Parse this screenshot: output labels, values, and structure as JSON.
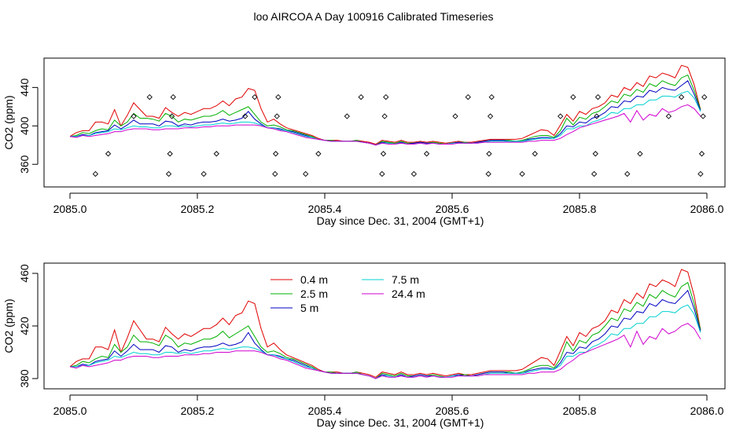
{
  "figure": {
    "title": "loo AIRCOA A  Day 100916  Calibrated Timeseries"
  },
  "chart_data": [
    {
      "type": "line",
      "panel": "top",
      "xlabel": "Day since Dec. 31, 2004 (GMT+1)",
      "ylabel": "CO2 (ppm)",
      "xlim": [
        2085.0,
        2086.0
      ],
      "ylim": [
        343,
        464
      ],
      "xticks": [
        2085.0,
        2085.2,
        2085.4,
        2085.6,
        2085.8,
        2086.0
      ],
      "xtick_labels": [
        "2085.0",
        "2085.2",
        "2085.4",
        "2085.6",
        "2085.8",
        "2086.0"
      ],
      "yticks": [
        360,
        400,
        440
      ],
      "ytick_labels": [
        "360",
        "400",
        "440"
      ],
      "grid": false,
      "legend": "none",
      "series_ref": "shared",
      "flag_points": {
        "x": [
          2085.04,
          2085.06,
          2085.1,
          2085.125,
          2085.155,
          2085.157,
          2085.16,
          2085.162,
          2085.21,
          2085.23,
          2085.275,
          2085.29,
          2085.322,
          2085.323,
          2085.325,
          2085.327,
          2085.37,
          2085.39,
          2085.435,
          2085.457,
          2085.49,
          2085.492,
          2085.494,
          2085.496,
          2085.54,
          2085.56,
          2085.605,
          2085.625,
          2085.657,
          2085.658,
          2085.66,
          2085.662,
          2085.71,
          2085.73,
          2085.77,
          2085.79,
          2085.823,
          2085.825,
          2085.827,
          2085.829,
          2085.875,
          2085.895,
          2085.94,
          2085.96,
          2085.99,
          2085.992,
          2085.994,
          2085.996
        ],
        "y": [
          350,
          371,
          410,
          430,
          350,
          371,
          410,
          430,
          350,
          371,
          410,
          430,
          350,
          371,
          410,
          430,
          350,
          371,
          410,
          430,
          350,
          371,
          410,
          430,
          350,
          371,
          410,
          430,
          350,
          371,
          410,
          430,
          350,
          371,
          410,
          430,
          350,
          371,
          410,
          430,
          350,
          371,
          410,
          430,
          350,
          371,
          410,
          430
        ]
      }
    },
    {
      "type": "line",
      "panel": "bottom",
      "xlabel": "Day since Dec. 31, 2004 (GMT+1)",
      "ylabel": "CO2 (ppm)",
      "xlim": [
        2085.0,
        2086.0
      ],
      "ylim": [
        377,
        463
      ],
      "xticks": [
        2085.0,
        2085.2,
        2085.4,
        2085.6,
        2085.8,
        2086.0
      ],
      "xtick_labels": [
        "2085.0",
        "2085.2",
        "2085.4",
        "2085.6",
        "2085.8",
        "2086.0"
      ],
      "yticks": [
        380,
        420,
        460
      ],
      "ytick_labels": [
        "380",
        "420",
        "460"
      ],
      "grid": false,
      "legend": "top-left",
      "series_ref": "shared"
    }
  ],
  "series": {
    "x": [
      2085.0,
      2085.01,
      2085.02,
      2085.03,
      2085.04,
      2085.05,
      2085.06,
      2085.07,
      2085.08,
      2085.09,
      2085.1,
      2085.11,
      2085.12,
      2085.13,
      2085.14,
      2085.15,
      2085.16,
      2085.17,
      2085.18,
      2085.19,
      2085.2,
      2085.21,
      2085.22,
      2085.23,
      2085.24,
      2085.25,
      2085.26,
      2085.27,
      2085.28,
      2085.29,
      2085.3,
      2085.31,
      2085.32,
      2085.33,
      2085.34,
      2085.35,
      2085.36,
      2085.37,
      2085.38,
      2085.39,
      2085.4,
      2085.41,
      2085.42,
      2085.43,
      2085.44,
      2085.45,
      2085.46,
      2085.47,
      2085.48,
      2085.49,
      2085.5,
      2085.51,
      2085.52,
      2085.53,
      2085.54,
      2085.55,
      2085.56,
      2085.57,
      2085.58,
      2085.59,
      2085.6,
      2085.61,
      2085.62,
      2085.63,
      2085.64,
      2085.65,
      2085.66,
      2085.67,
      2085.68,
      2085.69,
      2085.7,
      2085.71,
      2085.72,
      2085.73,
      2085.74,
      2085.75,
      2085.76,
      2085.77,
      2085.78,
      2085.79,
      2085.8,
      2085.81,
      2085.82,
      2085.83,
      2085.84,
      2085.85,
      2085.86,
      2085.87,
      2085.88,
      2085.89,
      2085.9,
      2085.91,
      2085.92,
      2085.93,
      2085.94,
      2085.95,
      2085.96,
      2085.97,
      2085.98,
      2085.99
    ],
    "lines": [
      {
        "name": "0.4 m",
        "color": "#e00000",
        "values": [
          389,
          393,
          395,
          395,
          404,
          404,
          402,
          417,
          400,
          411,
          424,
          417,
          410,
          410,
          408,
          419,
          414,
          410,
          414,
          412,
          415,
          418,
          418,
          421,
          426,
          421,
          428,
          430,
          439,
          437,
          418,
          404,
          407,
          402,
          398,
          396,
          394,
          392,
          390,
          387,
          385,
          385,
          385,
          384,
          384,
          385,
          384,
          383,
          381,
          385,
          384,
          383,
          385,
          383,
          383,
          384,
          383,
          384,
          383,
          382,
          383,
          384,
          383,
          383,
          384,
          385,
          386,
          386,
          386,
          386,
          386,
          387,
          390,
          393,
          396,
          395,
          390,
          401,
          412,
          405,
          415,
          412,
          418,
          420,
          424,
          432,
          430,
          440,
          437,
          445,
          441,
          452,
          450,
          455,
          453,
          450,
          463,
          461,
          443,
          417
        ]
      },
      {
        "name": "2.5 m",
        "color": "#00b000",
        "values": [
          389,
          390,
          393,
          392,
          395,
          397,
          396,
          406,
          400,
          404,
          413,
          408,
          408,
          407,
          405,
          413,
          410,
          404,
          407,
          406,
          408,
          410,
          410,
          412,
          416,
          411,
          414,
          417,
          420,
          412,
          404,
          400,
          401,
          399,
          396,
          395,
          393,
          391,
          389,
          386,
          385,
          385,
          384,
          384,
          384,
          385,
          383,
          382,
          380,
          384,
          383,
          382,
          384,
          382,
          382,
          383,
          382,
          383,
          382,
          381,
          382,
          383,
          383,
          382,
          383,
          384,
          385,
          385,
          385,
          385,
          384,
          385,
          387,
          389,
          390,
          390,
          388,
          395,
          408,
          401,
          409,
          407,
          413,
          415,
          420,
          426,
          424,
          433,
          431,
          438,
          435,
          444,
          441,
          447,
          444,
          442,
          450,
          453,
          437,
          417
        ]
      },
      {
        "name": "5 m",
        "color": "#0000c0",
        "values": [
          389,
          389,
          391,
          390,
          393,
          394,
          395,
          401,
          397,
          401,
          406,
          402,
          402,
          402,
          400,
          405,
          404,
          400,
          402,
          401,
          403,
          404,
          404,
          405,
          407,
          405,
          406,
          408,
          415,
          407,
          402,
          398,
          398,
          397,
          395,
          394,
          392,
          390,
          388,
          386,
          385,
          384,
          384,
          384,
          384,
          384,
          383,
          382,
          380,
          383,
          382,
          381,
          383,
          381,
          382,
          383,
          382,
          382,
          381,
          381,
          382,
          383,
          382,
          382,
          383,
          384,
          385,
          385,
          385,
          384,
          384,
          384,
          386,
          387,
          388,
          388,
          387,
          392,
          400,
          399,
          404,
          403,
          408,
          410,
          414,
          420,
          419,
          426,
          425,
          431,
          430,
          437,
          435,
          440,
          438,
          437,
          442,
          447,
          433,
          416
        ]
      },
      {
        "name": "7.5 m",
        "color": "#00d0d0",
        "values": [
          389,
          389,
          390,
          390,
          392,
          393,
          394,
          397,
          396,
          398,
          400,
          399,
          399,
          398,
          398,
          400,
          400,
          399,
          400,
          399,
          400,
          401,
          401,
          402,
          403,
          402,
          403,
          404,
          404,
          403,
          401,
          398,
          398,
          396,
          395,
          393,
          391,
          389,
          388,
          386,
          385,
          384,
          384,
          384,
          384,
          384,
          383,
          382,
          380,
          382,
          382,
          381,
          382,
          381,
          381,
          382,
          381,
          382,
          381,
          381,
          382,
          382,
          382,
          382,
          382,
          383,
          384,
          384,
          384,
          384,
          384,
          384,
          385,
          386,
          387,
          387,
          387,
          390,
          397,
          397,
          400,
          400,
          404,
          406,
          409,
          414,
          413,
          418,
          418,
          422,
          422,
          427,
          427,
          431,
          431,
          430,
          434,
          436,
          429,
          415
        ]
      },
      {
        "name": "24.4 m",
        "color": "#d000d0",
        "values": [
          389,
          388,
          390,
          389,
          390,
          391,
          392,
          394,
          394,
          396,
          397,
          397,
          397,
          396,
          396,
          397,
          397,
          397,
          398,
          398,
          398,
          399,
          399,
          400,
          400,
          400,
          401,
          401,
          401,
          401,
          400,
          398,
          397,
          395,
          394,
          392,
          390,
          388,
          387,
          386,
          385,
          384,
          384,
          384,
          384,
          384,
          383,
          382,
          380,
          382,
          381,
          381,
          382,
          381,
          381,
          382,
          381,
          382,
          381,
          381,
          381,
          382,
          382,
          382,
          382,
          383,
          383,
          383,
          383,
          383,
          383,
          383,
          384,
          384,
          385,
          385,
          385,
          387,
          391,
          394,
          398,
          400,
          402,
          404,
          406,
          408,
          410,
          413,
          404,
          416,
          406,
          412,
          410,
          418,
          414,
          416,
          420,
          422,
          418,
          410
        ]
      }
    ]
  },
  "legend": {
    "items": [
      {
        "label": "0.4 m"
      },
      {
        "label": "7.5 m"
      },
      {
        "label": "2.5 m"
      },
      {
        "label": "24.4 m"
      },
      {
        "label": "5 m"
      }
    ]
  }
}
